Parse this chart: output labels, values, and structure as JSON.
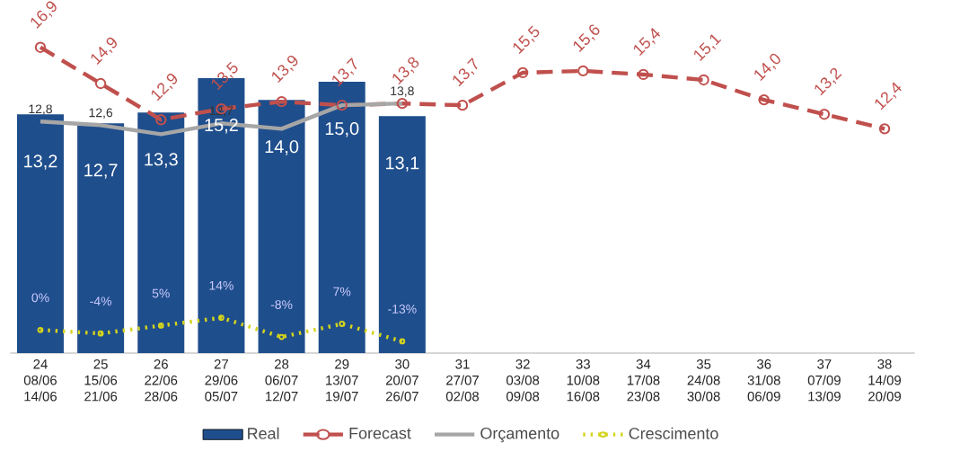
{
  "chart_data": {
    "type": "bar",
    "categories": [
      "24 08/06 14/06",
      "25 15/06 21/06",
      "26 22/06 28/06",
      "27 29/06 05/07",
      "28 06/07 12/07",
      "29 13/07 19/07",
      "30 20/07 26/07",
      "31 27/07 02/08",
      "32 03/08 09/08",
      "33 10/08 16/08",
      "34 17/08 23/08",
      "35 24/08 30/08",
      "36 31/08 06/09",
      "37 07/09 13/09",
      "38 14/09 20/09"
    ],
    "legend": "bottom",
    "series": [
      {
        "name": "Real",
        "color": "#1f4e8c",
        "values": [
          13.2,
          12.7,
          13.3,
          15.2,
          14.0,
          15.0,
          13.1,
          null,
          null,
          null,
          null,
          null,
          null,
          null,
          null
        ],
        "value_labels": [
          "13,2",
          "12,7",
          "13,3",
          "15,2",
          "14,0",
          "15,0",
          "13,1",
          null,
          null,
          null,
          null,
          null,
          null,
          null,
          null
        ]
      },
      {
        "name": "Forecast",
        "type": "line",
        "color": "#c0504d",
        "marker": "circle",
        "line_style": "dashed",
        "values": [
          16.9,
          14.9,
          12.9,
          13.5,
          13.9,
          13.7,
          13.8,
          13.7,
          15.5,
          15.6,
          15.4,
          15.1,
          14.0,
          13.2,
          12.4
        ],
        "value_labels": [
          "16,9",
          "14,9",
          "12,9",
          "13,5",
          "13,9",
          "13,7",
          "13,8",
          "13,7",
          "15,5",
          "15,6",
          "15,4",
          "15,1",
          "14,0",
          "13,2",
          "12,4"
        ]
      },
      {
        "name": "Orçamento",
        "type": "line",
        "color": "#a6a6a6",
        "marker": "none",
        "line_style": "solid",
        "values": [
          12.8,
          12.6,
          12.1,
          12.7,
          12.4,
          13.7,
          13.8,
          null,
          null,
          null,
          null,
          null,
          null,
          null,
          null
        ],
        "value_labels": [
          "12,8",
          "12,6",
          null,
          "12,7",
          null,
          null,
          "13,8",
          null,
          null,
          null,
          null,
          null,
          null,
          null,
          null
        ]
      },
      {
        "name": "Crescimento",
        "type": "line",
        "axis": "y2",
        "color": "#d4d41c",
        "marker": "circle",
        "line_style": "dotted",
        "values": [
          0,
          -4,
          5,
          14,
          -8,
          7,
          -13,
          null,
          null,
          null,
          null,
          null,
          null,
          null,
          null
        ],
        "value_labels": [
          "0%",
          "-4%",
          "5%",
          "14%",
          "-8%",
          "7%",
          "-13%",
          null,
          null,
          null,
          null,
          null,
          null,
          null,
          null
        ]
      }
    ]
  }
}
